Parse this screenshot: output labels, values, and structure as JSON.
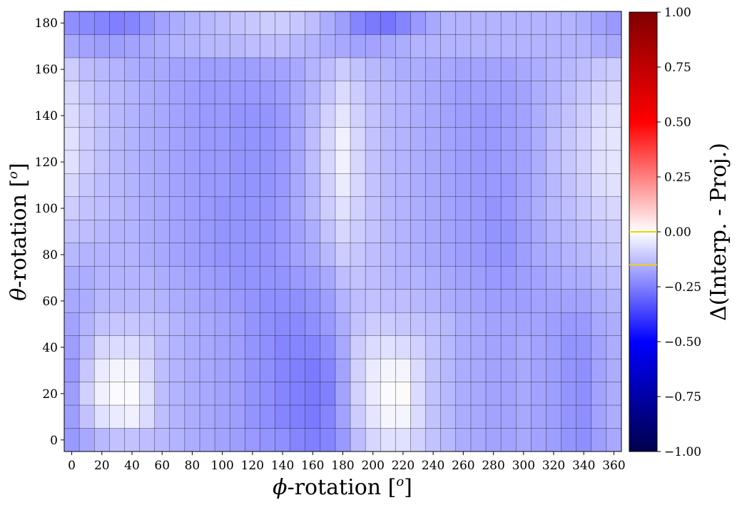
{
  "chart_data": {
    "type": "heatmap",
    "xlabel": "ϕ-rotation [o]",
    "ylabel": "θ-rotation [o]",
    "x_ticks": [
      0,
      20,
      40,
      60,
      80,
      100,
      120,
      140,
      160,
      180,
      200,
      220,
      240,
      260,
      280,
      300,
      320,
      340,
      360
    ],
    "y_ticks": [
      0,
      20,
      40,
      60,
      80,
      100,
      120,
      140,
      160,
      180
    ],
    "x_values": [
      0,
      10,
      20,
      30,
      40,
      50,
      60,
      70,
      80,
      90,
      100,
      110,
      120,
      130,
      140,
      150,
      160,
      170,
      180,
      190,
      200,
      210,
      220,
      230,
      240,
      250,
      260,
      270,
      280,
      290,
      300,
      310,
      320,
      330,
      340,
      350,
      360
    ],
    "y_values": [
      0,
      10,
      20,
      30,
      40,
      50,
      60,
      70,
      80,
      90,
      100,
      110,
      120,
      130,
      140,
      150,
      160,
      170,
      180
    ],
    "values": [
      [
        -0.2,
        -0.17,
        -0.14,
        -0.12,
        -0.12,
        -0.13,
        -0.14,
        -0.15,
        -0.16,
        -0.17,
        -0.18,
        -0.19,
        -0.2,
        -0.21,
        -0.22,
        -0.24,
        -0.25,
        -0.24,
        -0.2,
        -0.13,
        -0.08,
        -0.06,
        -0.06,
        -0.09,
        -0.12,
        -0.14,
        -0.16,
        -0.17,
        -0.18,
        -0.18,
        -0.17,
        -0.18,
        -0.19,
        -0.21,
        -0.22,
        -0.19,
        -0.17
      ],
      [
        -0.19,
        -0.12,
        -0.06,
        -0.04,
        -0.03,
        -0.07,
        -0.13,
        -0.15,
        -0.16,
        -0.17,
        -0.18,
        -0.19,
        -0.21,
        -0.22,
        -0.24,
        -0.25,
        -0.26,
        -0.24,
        -0.18,
        -0.1,
        -0.05,
        -0.02,
        -0.02,
        -0.07,
        -0.12,
        -0.14,
        -0.16,
        -0.17,
        -0.18,
        -0.18,
        -0.17,
        -0.18,
        -0.19,
        -0.21,
        -0.22,
        -0.18,
        -0.16
      ],
      [
        -0.19,
        -0.09,
        -0.03,
        -0.01,
        -0.01,
        -0.06,
        -0.13,
        -0.15,
        -0.16,
        -0.17,
        -0.18,
        -0.19,
        -0.21,
        -0.22,
        -0.24,
        -0.25,
        -0.26,
        -0.25,
        -0.18,
        -0.09,
        -0.04,
        -0.01,
        0.01,
        -0.07,
        -0.12,
        -0.14,
        -0.16,
        -0.17,
        -0.18,
        -0.18,
        -0.17,
        -0.18,
        -0.19,
        -0.21,
        -0.22,
        -0.18,
        -0.16
      ],
      [
        -0.2,
        -0.11,
        -0.04,
        -0.02,
        -0.02,
        -0.07,
        -0.13,
        -0.15,
        -0.16,
        -0.17,
        -0.18,
        -0.19,
        -0.21,
        -0.22,
        -0.24,
        -0.25,
        -0.26,
        -0.24,
        -0.18,
        -0.09,
        -0.04,
        -0.02,
        -0.02,
        -0.07,
        -0.12,
        -0.14,
        -0.16,
        -0.17,
        -0.18,
        -0.18,
        -0.17,
        -0.18,
        -0.19,
        -0.21,
        -0.22,
        -0.18,
        -0.16
      ],
      [
        -0.19,
        -0.14,
        -0.08,
        -0.07,
        -0.07,
        -0.09,
        -0.13,
        -0.15,
        -0.16,
        -0.17,
        -0.18,
        -0.19,
        -0.21,
        -0.22,
        -0.24,
        -0.24,
        -0.24,
        -0.22,
        -0.17,
        -0.1,
        -0.07,
        -0.06,
        -0.07,
        -0.09,
        -0.12,
        -0.14,
        -0.16,
        -0.17,
        -0.18,
        -0.18,
        -0.17,
        -0.18,
        -0.19,
        -0.21,
        -0.21,
        -0.18,
        -0.16
      ],
      [
        -0.18,
        -0.15,
        -0.12,
        -0.11,
        -0.11,
        -0.12,
        -0.13,
        -0.15,
        -0.16,
        -0.17,
        -0.18,
        -0.19,
        -0.21,
        -0.22,
        -0.23,
        -0.23,
        -0.22,
        -0.2,
        -0.16,
        -0.12,
        -0.1,
        -0.1,
        -0.11,
        -0.12,
        -0.13,
        -0.14,
        -0.16,
        -0.17,
        -0.18,
        -0.18,
        -0.18,
        -0.18,
        -0.19,
        -0.2,
        -0.2,
        -0.17,
        -0.16
      ],
      [
        -0.17,
        -0.16,
        -0.14,
        -0.14,
        -0.14,
        -0.14,
        -0.15,
        -0.16,
        -0.17,
        -0.18,
        -0.19,
        -0.2,
        -0.21,
        -0.22,
        -0.22,
        -0.22,
        -0.21,
        -0.19,
        -0.15,
        -0.13,
        -0.12,
        -0.13,
        -0.13,
        -0.14,
        -0.15,
        -0.16,
        -0.17,
        -0.18,
        -0.19,
        -0.19,
        -0.19,
        -0.18,
        -0.18,
        -0.18,
        -0.18,
        -0.16,
        -0.15
      ],
      [
        -0.16,
        -0.16,
        -0.15,
        -0.15,
        -0.15,
        -0.15,
        -0.16,
        -0.17,
        -0.18,
        -0.19,
        -0.2,
        -0.21,
        -0.21,
        -0.21,
        -0.21,
        -0.2,
        -0.19,
        -0.17,
        -0.13,
        -0.12,
        -0.13,
        -0.14,
        -0.15,
        -0.15,
        -0.16,
        -0.17,
        -0.18,
        -0.19,
        -0.2,
        -0.2,
        -0.19,
        -0.18,
        -0.17,
        -0.16,
        -0.16,
        -0.14,
        -0.13
      ],
      [
        -0.14,
        -0.15,
        -0.15,
        -0.15,
        -0.15,
        -0.16,
        -0.17,
        -0.18,
        -0.19,
        -0.2,
        -0.21,
        -0.21,
        -0.21,
        -0.21,
        -0.2,
        -0.18,
        -0.17,
        -0.14,
        -0.1,
        -0.11,
        -0.13,
        -0.14,
        -0.15,
        -0.16,
        -0.17,
        -0.18,
        -0.19,
        -0.2,
        -0.21,
        -0.21,
        -0.19,
        -0.17,
        -0.16,
        -0.15,
        -0.14,
        -0.12,
        -0.11
      ],
      [
        -0.12,
        -0.13,
        -0.14,
        -0.15,
        -0.15,
        -0.16,
        -0.17,
        -0.18,
        -0.19,
        -0.2,
        -0.21,
        -0.21,
        -0.21,
        -0.21,
        -0.2,
        -0.18,
        -0.16,
        -0.12,
        -0.08,
        -0.1,
        -0.12,
        -0.14,
        -0.15,
        -0.16,
        -0.17,
        -0.18,
        -0.19,
        -0.2,
        -0.21,
        -0.21,
        -0.19,
        -0.17,
        -0.15,
        -0.14,
        -0.13,
        -0.11,
        -0.1
      ],
      [
        -0.1,
        -0.12,
        -0.13,
        -0.14,
        -0.15,
        -0.16,
        -0.17,
        -0.18,
        -0.19,
        -0.2,
        -0.21,
        -0.21,
        -0.21,
        -0.21,
        -0.2,
        -0.17,
        -0.14,
        -0.1,
        -0.06,
        -0.09,
        -0.12,
        -0.14,
        -0.15,
        -0.16,
        -0.17,
        -0.18,
        -0.19,
        -0.2,
        -0.21,
        -0.2,
        -0.18,
        -0.16,
        -0.14,
        -0.13,
        -0.11,
        -0.09,
        -0.08
      ],
      [
        -0.08,
        -0.11,
        -0.13,
        -0.14,
        -0.15,
        -0.16,
        -0.17,
        -0.18,
        -0.19,
        -0.2,
        -0.2,
        -0.21,
        -0.21,
        -0.21,
        -0.2,
        -0.17,
        -0.14,
        -0.09,
        -0.04,
        -0.08,
        -0.12,
        -0.14,
        -0.15,
        -0.16,
        -0.17,
        -0.18,
        -0.19,
        -0.2,
        -0.2,
        -0.2,
        -0.18,
        -0.16,
        -0.14,
        -0.12,
        -0.1,
        -0.07,
        -0.06
      ],
      [
        -0.06,
        -0.1,
        -0.12,
        -0.14,
        -0.15,
        -0.16,
        -0.17,
        -0.18,
        -0.19,
        -0.2,
        -0.2,
        -0.21,
        -0.21,
        -0.21,
        -0.2,
        -0.17,
        -0.13,
        -0.08,
        -0.03,
        -0.08,
        -0.12,
        -0.14,
        -0.15,
        -0.16,
        -0.17,
        -0.18,
        -0.19,
        -0.2,
        -0.2,
        -0.19,
        -0.18,
        -0.16,
        -0.13,
        -0.11,
        -0.09,
        -0.06,
        -0.05
      ],
      [
        -0.06,
        -0.1,
        -0.12,
        -0.14,
        -0.15,
        -0.16,
        -0.17,
        -0.18,
        -0.19,
        -0.2,
        -0.2,
        -0.21,
        -0.21,
        -0.21,
        -0.2,
        -0.17,
        -0.13,
        -0.08,
        -0.03,
        -0.08,
        -0.12,
        -0.14,
        -0.15,
        -0.16,
        -0.17,
        -0.18,
        -0.19,
        -0.2,
        -0.2,
        -0.19,
        -0.18,
        -0.16,
        -0.13,
        -0.11,
        -0.09,
        -0.06,
        -0.05
      ],
      [
        -0.07,
        -0.1,
        -0.12,
        -0.14,
        -0.15,
        -0.16,
        -0.17,
        -0.18,
        -0.19,
        -0.2,
        -0.2,
        -0.21,
        -0.21,
        -0.21,
        -0.2,
        -0.17,
        -0.14,
        -0.09,
        -0.05,
        -0.09,
        -0.12,
        -0.14,
        -0.15,
        -0.16,
        -0.17,
        -0.18,
        -0.19,
        -0.2,
        -0.2,
        -0.19,
        -0.18,
        -0.16,
        -0.14,
        -0.12,
        -0.1,
        -0.07,
        -0.06
      ],
      [
        -0.08,
        -0.11,
        -0.13,
        -0.14,
        -0.15,
        -0.16,
        -0.17,
        -0.18,
        -0.19,
        -0.2,
        -0.2,
        -0.2,
        -0.2,
        -0.2,
        -0.19,
        -0.17,
        -0.15,
        -0.11,
        -0.07,
        -0.1,
        -0.13,
        -0.14,
        -0.15,
        -0.16,
        -0.17,
        -0.18,
        -0.19,
        -0.19,
        -0.19,
        -0.19,
        -0.18,
        -0.16,
        -0.15,
        -0.13,
        -0.11,
        -0.09,
        -0.08
      ],
      [
        -0.1,
        -0.13,
        -0.14,
        -0.15,
        -0.16,
        -0.17,
        -0.17,
        -0.18,
        -0.18,
        -0.19,
        -0.19,
        -0.19,
        -0.19,
        -0.18,
        -0.18,
        -0.17,
        -0.15,
        -0.13,
        -0.1,
        -0.12,
        -0.14,
        -0.15,
        -0.16,
        -0.16,
        -0.17,
        -0.17,
        -0.18,
        -0.18,
        -0.18,
        -0.18,
        -0.17,
        -0.16,
        -0.15,
        -0.14,
        -0.13,
        -0.11,
        -0.1
      ],
      [
        -0.17,
        -0.18,
        -0.19,
        -0.19,
        -0.18,
        -0.17,
        -0.16,
        -0.15,
        -0.15,
        -0.14,
        -0.14,
        -0.14,
        -0.13,
        -0.13,
        -0.13,
        -0.14,
        -0.15,
        -0.16,
        -0.17,
        -0.18,
        -0.18,
        -0.17,
        -0.16,
        -0.15,
        -0.15,
        -0.15,
        -0.15,
        -0.15,
        -0.15,
        -0.15,
        -0.15,
        -0.15,
        -0.15,
        -0.15,
        -0.15,
        -0.16,
        -0.17
      ],
      [
        -0.22,
        -0.23,
        -0.24,
        -0.25,
        -0.24,
        -0.21,
        -0.18,
        -0.16,
        -0.15,
        -0.14,
        -0.13,
        -0.12,
        -0.11,
        -0.1,
        -0.1,
        -0.11,
        -0.13,
        -0.16,
        -0.19,
        -0.24,
        -0.26,
        -0.27,
        -0.24,
        -0.2,
        -0.17,
        -0.15,
        -0.15,
        -0.15,
        -0.15,
        -0.15,
        -0.15,
        -0.15,
        -0.15,
        -0.15,
        -0.16,
        -0.18,
        -0.2
      ]
    ],
    "xlim": [
      -5,
      365
    ],
    "ylim": [
      -5,
      185
    ],
    "colorbar": {
      "label": "Δ(Interp. - Proj.)",
      "ticks": [
        "−1.00",
        "−0.75",
        "−0.50",
        "−0.25",
        "0.00",
        "0.25",
        "0.50",
        "0.75",
        "1.00"
      ],
      "tick_values": [
        -1.0,
        -0.75,
        -0.5,
        -0.25,
        0.0,
        0.25,
        0.5,
        0.75,
        1.0
      ],
      "vmin": -1.0,
      "vmax": 1.0,
      "colormap": "seismic",
      "marker_lines": [
        0.0,
        -0.15
      ],
      "marker_color": "#f2d200"
    },
    "grid": true,
    "cell_edge_color": "#000000"
  }
}
